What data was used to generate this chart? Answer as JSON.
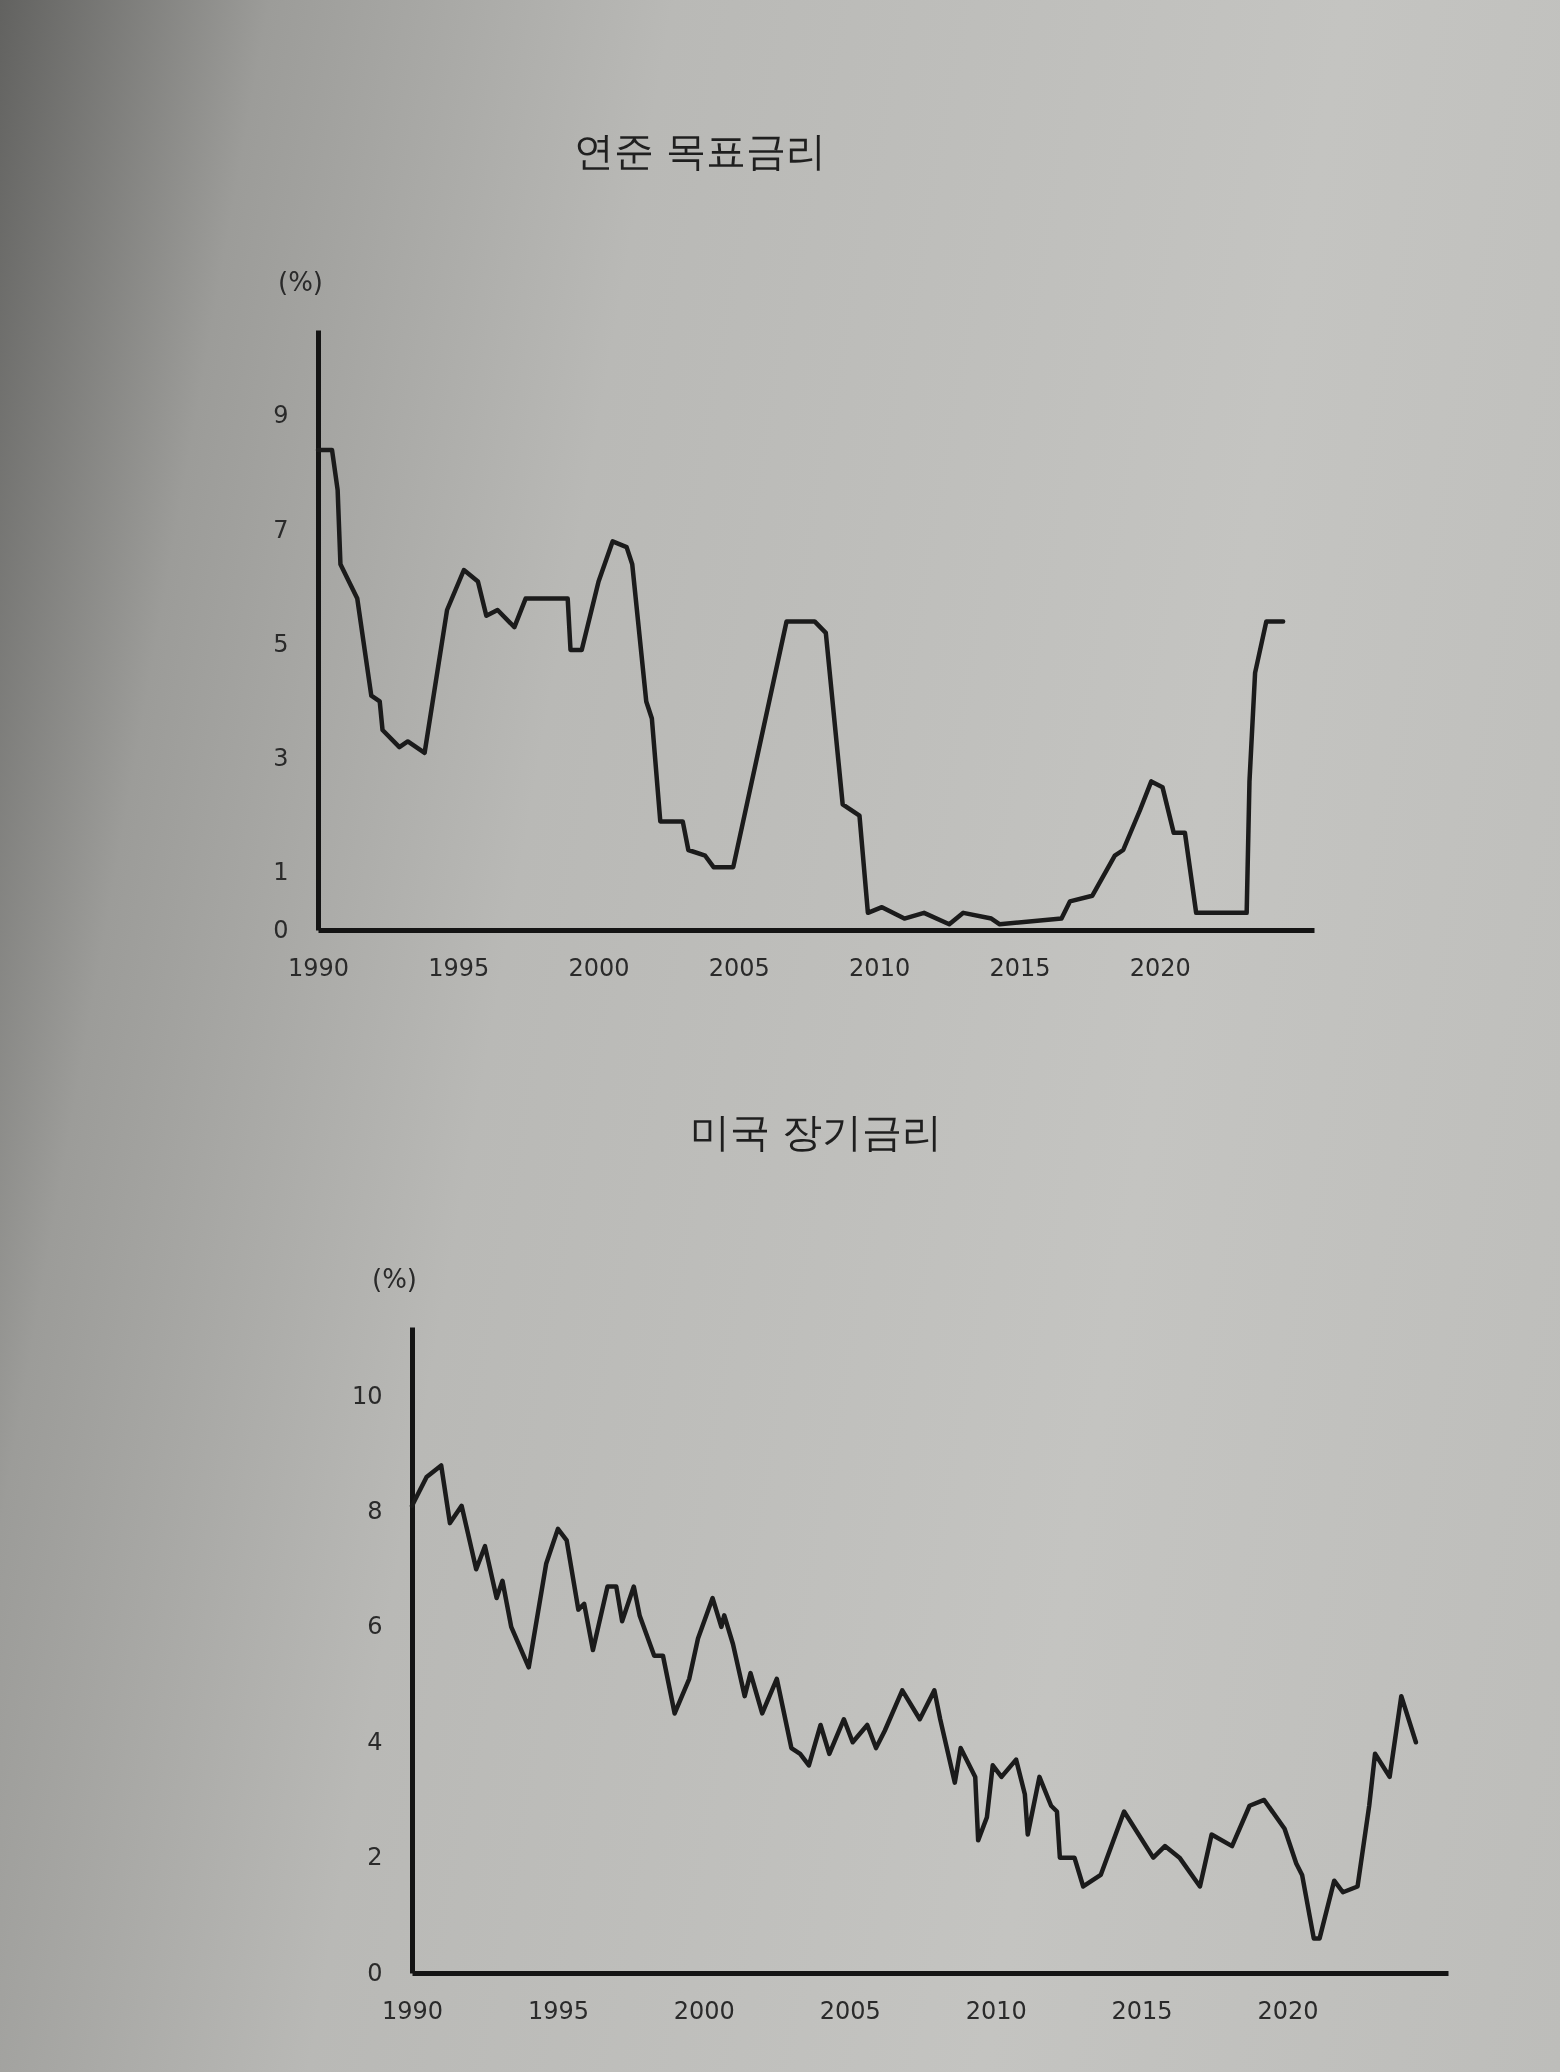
{
  "chart_data": [
    {
      "type": "line",
      "title": "연준 목표금리",
      "ylabel": "(%)",
      "x": [
        1990.0,
        1990.5,
        1990.7,
        1990.8,
        1991.4,
        1991.9,
        1992.2,
        1992.3,
        1992.9,
        1993.2,
        1993.8,
        1994.6,
        1995.2,
        1995.7,
        1996.0,
        1996.4,
        1997.0,
        1997.4,
        1998.5,
        1998.9,
        1999.0,
        1999.4,
        2000.0,
        2000.5,
        2001.0,
        2001.2,
        2001.7,
        2001.9,
        2002.2,
        2003.0,
        2003.2,
        2003.8,
        2004.1,
        2004.8,
        2006.7,
        2007.7,
        2008.1,
        2008.7,
        2009.3,
        2009.6,
        2010.1,
        2010.9,
        2011.6,
        2012.5,
        2013.0,
        2014.0,
        2014.3,
        2016.5,
        2016.8,
        2017.6,
        2018.4,
        2018.7,
        2019.3,
        2019.7,
        2020.1,
        2020.5,
        2020.9,
        2021.3,
        2023.1,
        2023.2,
        2023.4,
        2023.8,
        2024.4
      ],
      "values": [
        8.4,
        8.4,
        7.7,
        6.4,
        5.8,
        4.1,
        4.0,
        3.5,
        3.2,
        3.3,
        3.1,
        5.6,
        6.3,
        6.1,
        5.5,
        5.6,
        5.3,
        5.8,
        5.8,
        5.8,
        4.9,
        4.9,
        6.1,
        6.8,
        6.7,
        6.4,
        4.0,
        3.7,
        1.9,
        1.9,
        1.4,
        1.3,
        1.1,
        1.1,
        5.4,
        5.4,
        5.2,
        2.2,
        2.0,
        0.3,
        0.4,
        0.2,
        0.3,
        0.1,
        0.3,
        0.2,
        0.1,
        0.2,
        0.5,
        0.6,
        1.3,
        1.4,
        2.1,
        2.6,
        2.5,
        1.7,
        1.7,
        0.3,
        0.3,
        2.6,
        4.5,
        5.4,
        5.4
      ],
      "color": "#1b1b1b",
      "line_style": "solid",
      "xlim": [
        1990,
        2025.5
      ],
      "xticks": [
        1990,
        1995,
        2000,
        2005,
        2010,
        2015,
        2020
      ],
      "ylim": [
        0,
        10.5
      ],
      "yticks": [
        0,
        1,
        3,
        5,
        7,
        9
      ],
      "grid": false
    },
    {
      "type": "line",
      "title": "미국 장기금리",
      "ylabel": "(%)",
      "x": [
        1990.0,
        1990.5,
        1991.0,
        1991.3,
        1991.7,
        1992.2,
        1992.5,
        1992.9,
        1993.1,
        1993.4,
        1994.0,
        1994.6,
        1995.0,
        1995.3,
        1995.7,
        1995.9,
        1996.2,
        1996.7,
        1997.0,
        1997.2,
        1997.6,
        1997.8,
        1998.3,
        1998.6,
        1999.0,
        1999.5,
        1999.8,
        2000.3,
        2000.6,
        2000.7,
        2001.0,
        2001.4,
        2001.6,
        2002.0,
        2002.5,
        2003.0,
        2003.3,
        2003.6,
        2004.0,
        2004.3,
        2004.8,
        2005.1,
        2005.6,
        2005.9,
        2006.2,
        2006.8,
        2007.4,
        2007.9,
        2008.1,
        2008.6,
        2008.8,
        2009.3,
        2009.4,
        2009.7,
        2009.9,
        2010.2,
        2010.7,
        2011.0,
        2011.1,
        2011.5,
        2011.9,
        2012.1,
        2012.2,
        2012.7,
        2013.0,
        2013.6,
        2014.4,
        2015.4,
        2015.8,
        2016.3,
        2017.0,
        2017.4,
        2018.1,
        2018.7,
        2019.2,
        2019.9,
        2020.3,
        2020.5,
        2020.9,
        2021.1,
        2021.6,
        2021.9,
        2022.4,
        2022.8,
        2023.0,
        2023.5,
        2023.9,
        2024.4
      ],
      "values": [
        8.1,
        8.6,
        8.8,
        7.8,
        8.1,
        7.0,
        7.4,
        6.5,
        6.8,
        6.0,
        5.3,
        7.1,
        7.7,
        7.5,
        6.3,
        6.4,
        5.6,
        6.7,
        6.7,
        6.1,
        6.7,
        6.2,
        5.5,
        5.5,
        4.5,
        5.1,
        5.8,
        6.5,
        6.0,
        6.2,
        5.7,
        4.8,
        5.2,
        4.5,
        5.1,
        3.9,
        3.8,
        3.6,
        4.3,
        3.8,
        4.4,
        4.0,
        4.3,
        3.9,
        4.2,
        4.9,
        4.4,
        4.9,
        4.4,
        3.3,
        3.9,
        3.4,
        2.3,
        2.7,
        3.6,
        3.4,
        3.7,
        3.1,
        2.4,
        3.4,
        2.9,
        2.8,
        2.0,
        2.0,
        1.5,
        1.7,
        2.8,
        2.0,
        2.2,
        2.0,
        1.5,
        2.4,
        2.2,
        2.9,
        3.0,
        2.5,
        1.9,
        1.7,
        0.6,
        0.6,
        1.6,
        1.4,
        1.5,
        2.9,
        3.8,
        3.4,
        4.8,
        4.0
      ],
      "color": "#1b1b1b",
      "line_style": "solid",
      "xlim": [
        1990,
        2025.5
      ],
      "xticks": [
        1990,
        1995,
        2000,
        2005,
        2010,
        2015,
        2020
      ],
      "ylim": [
        0,
        11.2
      ],
      "yticks": [
        0,
        2,
        4,
        6,
        8,
        10
      ],
      "grid": false
    }
  ]
}
